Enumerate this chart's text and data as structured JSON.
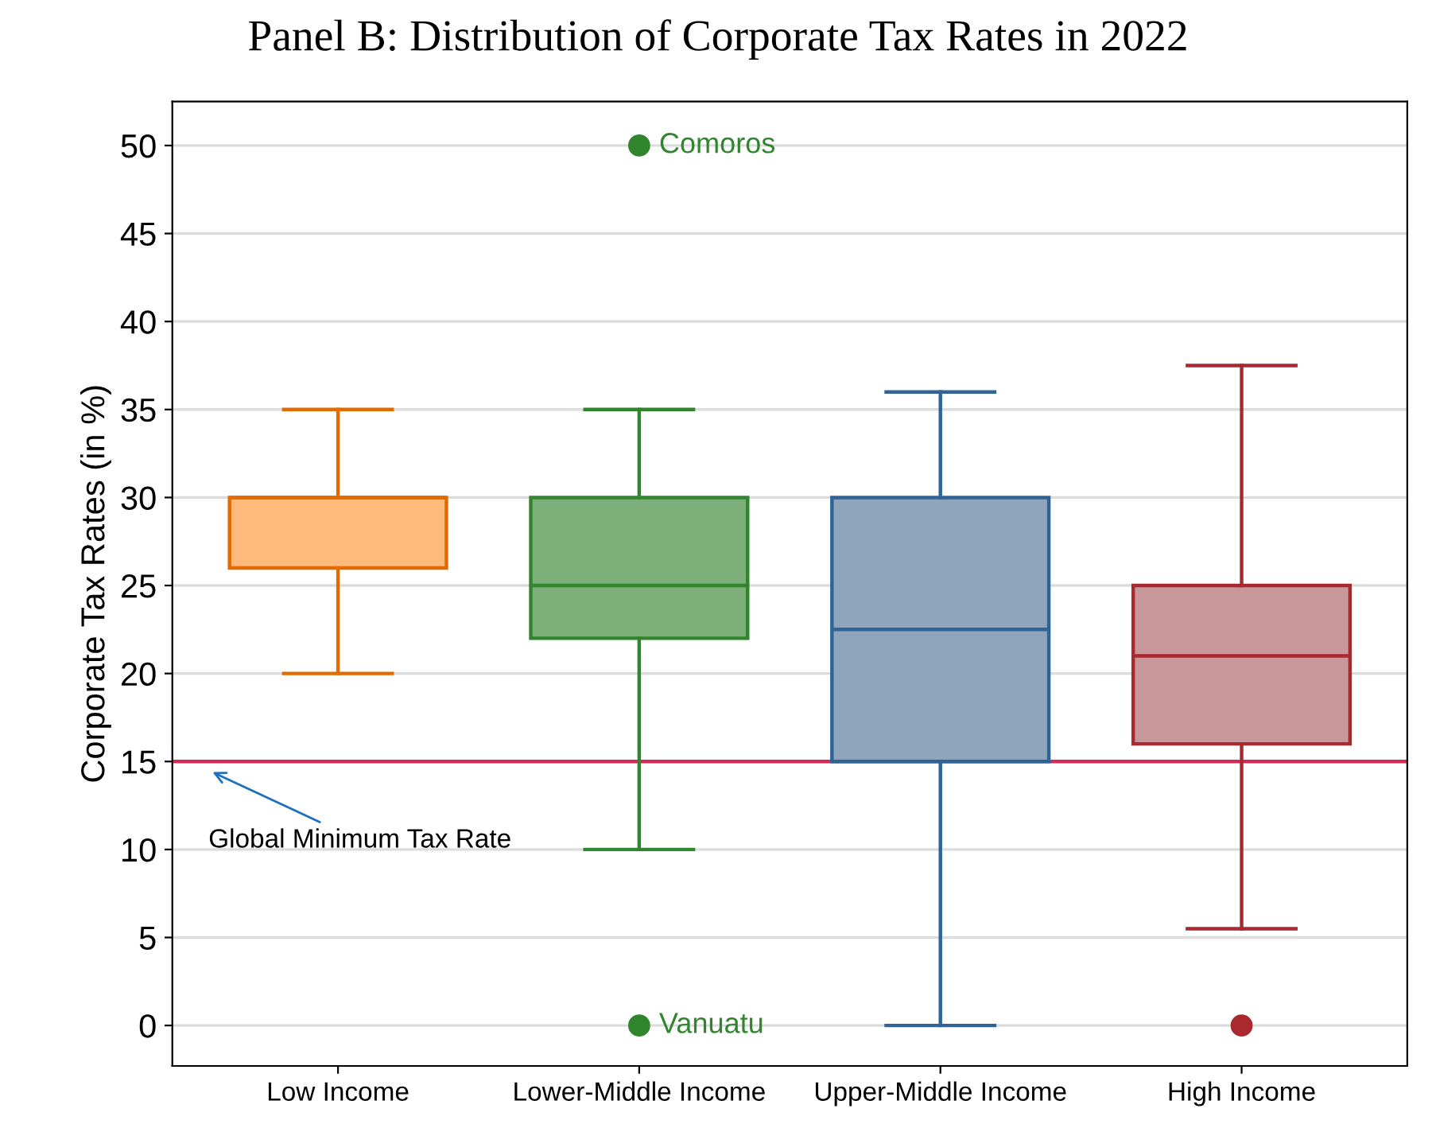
{
  "chart_data": {
    "type": "box",
    "title": "Panel B: Distribution of Corporate Tax Rates in 2022",
    "ylabel": "Corporate Tax Rates (in %)",
    "categories": [
      "Low Income",
      "Lower-Middle Income",
      "Upper-Middle Income",
      "High Income"
    ],
    "boxes": [
      {
        "low": 20,
        "q1": 26,
        "median": 30,
        "q3": 30,
        "high": 35
      },
      {
        "low": 10,
        "q1": 22,
        "median": 25,
        "q3": 30,
        "high": 35,
        "outliers": [
          50,
          0
        ]
      },
      {
        "low": 0,
        "q1": 15,
        "median": 22.5,
        "q3": 30,
        "high": 36
      },
      {
        "low": 5.5,
        "q1": 16,
        "median": 21,
        "q3": 25,
        "high": 37.5,
        "outliers": [
          0
        ]
      }
    ],
    "colors": [
      "#ffb97a",
      "#7caf7a",
      "#8ea5bc",
      "#c8979a"
    ],
    "ylim": [
      -2.3,
      52.5
    ],
    "yticks": [
      0,
      5,
      10,
      15,
      20,
      25,
      30,
      35,
      40,
      45,
      50
    ],
    "grid": "y",
    "legend": false,
    "ref_lines": [
      {
        "axis": "y",
        "value": 15,
        "label": "Global Minimum Tax Rate",
        "color": "#d42a5a"
      }
    ],
    "annotations": [
      "Comoros",
      "Vanuatu"
    ]
  }
}
